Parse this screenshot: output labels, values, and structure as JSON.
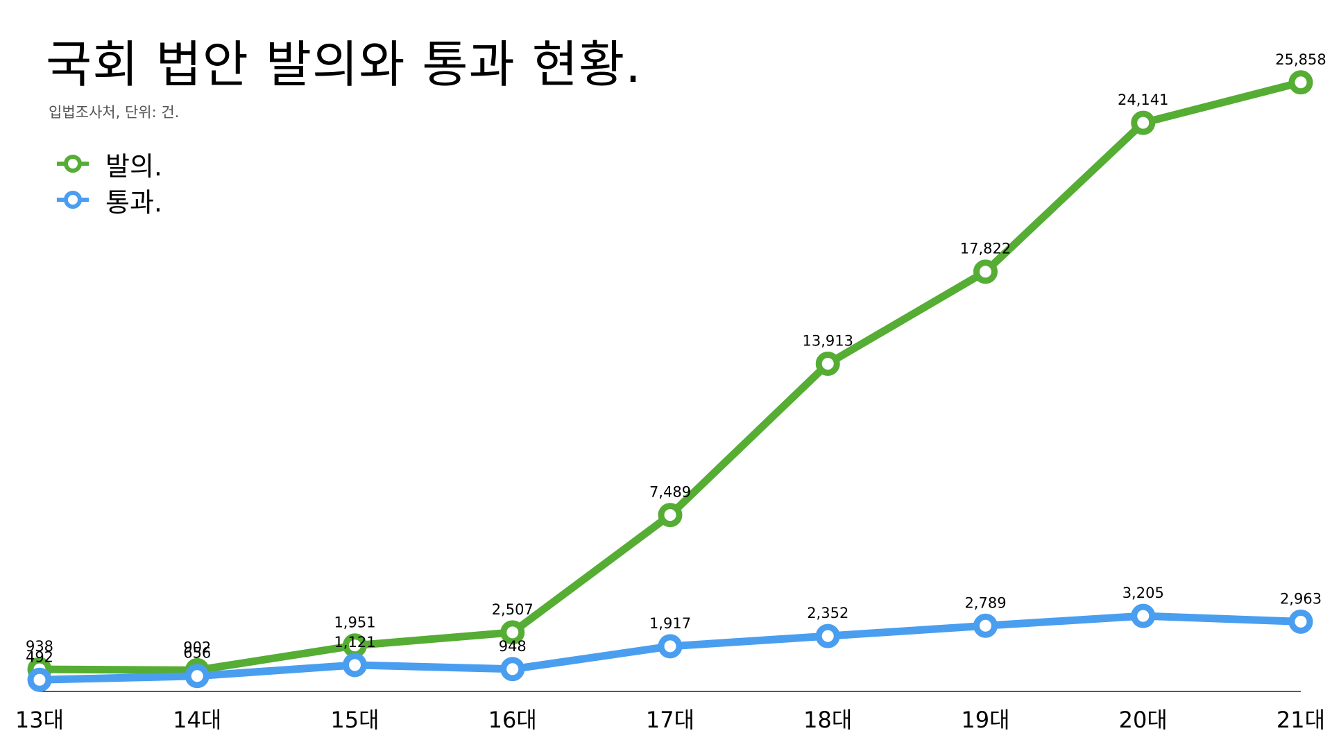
{
  "title": "국회 법안 발의와 통과 현황.",
  "subtitle": "입법조사처, 단위: 건.",
  "colors": {
    "proposed": "#55ad33",
    "passed": "#4a9ef0",
    "axis": "#222222"
  },
  "legend": {
    "items": [
      {
        "label": "발의.",
        "color": "#55ad33"
      },
      {
        "label": "통과.",
        "color": "#4a9ef0"
      }
    ]
  },
  "chart_data": {
    "type": "line",
    "title": "국회 법안 발의와 통과 현황.",
    "subtitle": "입법조사처, 단위: 건.",
    "categories": [
      "13대",
      "14대",
      "15대",
      "16대",
      "17대",
      "18대",
      "19대",
      "20대",
      "21대"
    ],
    "series": [
      {
        "name": "발의.",
        "color": "#55ad33",
        "values": [
          938,
          902,
          1951,
          2507,
          7489,
          13913,
          17822,
          24141,
          25858
        ],
        "labels": [
          "938",
          "902",
          "1,951",
          "2,507",
          "7,489",
          "13,913",
          "17,822",
          "24,141",
          "25,858"
        ]
      },
      {
        "name": "통과.",
        "color": "#4a9ef0",
        "values": [
          492,
          656,
          1121,
          948,
          1917,
          2352,
          2789,
          3205,
          2963
        ],
        "labels": [
          "492",
          "656",
          "1,121",
          "948",
          "1,917",
          "2,352",
          "2,789",
          "3,205",
          "2,963"
        ]
      }
    ],
    "ylim": [
      0,
      27000
    ],
    "grid": false,
    "legend_position": "top-left"
  }
}
